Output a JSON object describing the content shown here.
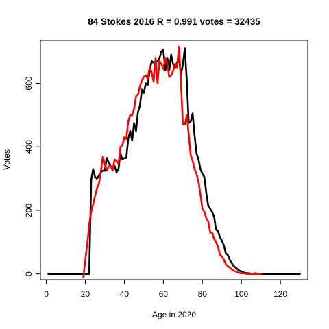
{
  "chart_data": {
    "type": "line",
    "title": "84 Stokes 2016 R = 0.991 votes = 32435",
    "xlabel": "Age in 2020",
    "ylabel": "Votes",
    "xlim": [
      -3,
      134
    ],
    "ylim": [
      -18,
      735
    ],
    "x_ticks": [
      0,
      20,
      40,
      60,
      80,
      100,
      120
    ],
    "y_ticks": [
      0,
      200,
      400,
      600
    ],
    "grid": false,
    "colors": {
      "actual": "#000000",
      "predicted": "#ff0000"
    },
    "series": [
      {
        "key": "actual",
        "x": [
          1,
          21,
          22,
          23,
          24,
          25,
          26,
          27,
          28,
          29,
          30,
          31,
          32,
          33,
          34,
          35,
          36,
          37,
          38,
          39,
          40,
          41,
          42,
          43,
          44,
          45,
          46,
          47,
          48,
          49,
          50,
          51,
          52,
          53,
          54,
          55,
          56,
          57,
          58,
          59,
          60,
          61,
          62,
          63,
          64,
          65,
          66,
          67,
          68,
          69,
          70,
          71,
          72,
          73,
          74,
          75,
          76,
          77,
          78,
          79,
          80,
          81,
          82,
          83,
          84,
          85,
          86,
          87,
          88,
          89,
          90,
          91,
          92,
          93,
          94,
          95,
          96,
          97,
          98,
          99,
          100,
          101,
          102,
          103,
          104,
          105,
          106,
          107,
          108,
          109,
          110,
          111,
          112,
          113,
          114,
          115,
          116,
          117,
          118,
          119,
          120,
          121,
          122,
          123,
          124,
          125,
          126,
          127,
          128,
          129,
          130
        ],
        "values": [
          0,
          0,
          0,
          295,
          330,
          305,
          300,
          310,
          320,
          325,
          325,
          365,
          350,
          340,
          335,
          340,
          320,
          330,
          380,
          360,
          365,
          365,
          425,
          450,
          420,
          475,
          450,
          510,
          530,
          580,
          570,
          600,
          595,
          640,
          670,
          665,
          665,
          670,
          680,
          700,
          705,
          640,
          680,
          640,
          690,
          660,
          650,
          665,
          680,
          625,
          660,
          710,
          610,
          475,
          480,
          505,
          435,
          380,
          360,
          330,
          315,
          305,
          255,
          215,
          205,
          195,
          180,
          140,
          135,
          115,
          105,
          90,
          65,
          60,
          45,
          35,
          25,
          20,
          15,
          10,
          8,
          5,
          3,
          2,
          2,
          1,
          0,
          2,
          1,
          0,
          0,
          0,
          0,
          0,
          0,
          0,
          0,
          0,
          0,
          0,
          0,
          0,
          0,
          0,
          0,
          0,
          0,
          0,
          0,
          0,
          0
        ]
      },
      {
        "key": "predicted",
        "x": [
          19,
          20,
          21,
          22,
          23,
          24,
          25,
          26,
          27,
          28,
          29,
          30,
          31,
          32,
          33,
          34,
          35,
          36,
          37,
          38,
          39,
          40,
          41,
          42,
          43,
          44,
          45,
          46,
          47,
          48,
          49,
          50,
          51,
          52,
          53,
          54,
          55,
          56,
          57,
          58,
          59,
          60,
          61,
          62,
          63,
          64,
          65,
          66,
          67,
          68,
          69,
          70,
          71,
          72,
          73,
          74,
          75,
          76,
          77,
          78,
          79,
          80,
          81,
          82,
          83,
          84,
          85,
          86,
          87,
          88,
          89,
          90,
          91,
          92,
          93,
          94,
          95,
          96,
          97,
          98,
          99,
          100,
          101,
          102,
          103,
          104,
          105,
          106,
          107,
          108,
          109,
          110
        ],
        "values": [
          -10,
          45,
          95,
          155,
          195,
          220,
          245,
          270,
          285,
          325,
          370,
          345,
          325,
          340,
          340,
          325,
          360,
          355,
          345,
          400,
          405,
          430,
          425,
          480,
          500,
          500,
          520,
          560,
          565,
          590,
          610,
          620,
          625,
          615,
          650,
          635,
          605,
          680,
          600,
          670,
          660,
          645,
          680,
          660,
          620,
          625,
          640,
          660,
          650,
          715,
          605,
          470,
          470,
          500,
          440,
          375,
          355,
          330,
          315,
          290,
          250,
          205,
          195,
          175,
          165,
          130,
          130,
          110,
          100,
          85,
          60,
          55,
          45,
          30,
          25,
          20,
          15,
          10,
          8,
          5,
          3,
          2,
          2,
          1,
          0,
          0,
          0,
          0,
          0,
          0,
          0,
          0
        ]
      }
    ]
  }
}
